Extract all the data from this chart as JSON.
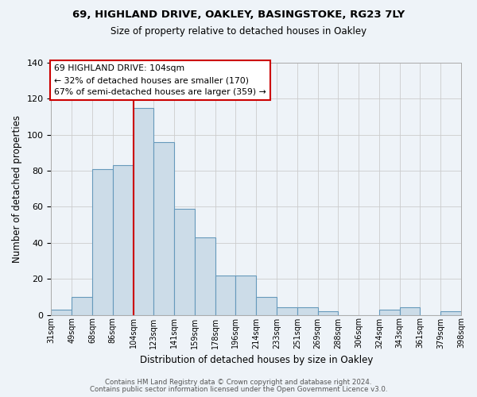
{
  "title": "69, HIGHLAND DRIVE, OAKLEY, BASINGSTOKE, RG23 7LY",
  "subtitle": "Size of property relative to detached houses in Oakley",
  "xlabel": "Distribution of detached houses by size in Oakley",
  "ylabel": "Number of detached properties",
  "bar_labels": [
    "31sqm",
    "49sqm",
    "68sqm",
    "86sqm",
    "104sqm",
    "123sqm",
    "141sqm",
    "159sqm",
    "178sqm",
    "196sqm",
    "214sqm",
    "233sqm",
    "251sqm",
    "269sqm",
    "288sqm",
    "306sqm",
    "324sqm",
    "343sqm",
    "361sqm",
    "379sqm",
    "398sqm"
  ],
  "bar_values": [
    3,
    10,
    81,
    83,
    115,
    96,
    59,
    43,
    22,
    22,
    10,
    4,
    4,
    2,
    0,
    0,
    3,
    4,
    0,
    2
  ],
  "vline_label_index": 4,
  "annotation_line1": "69 HIGHLAND DRIVE: 104sqm",
  "annotation_line2": "← 32% of detached houses are smaller (170)",
  "annotation_line3": "67% of semi-detached houses are larger (359) →",
  "bar_color": "#ccdce8",
  "bar_edge_color": "#6699bb",
  "vline_color": "#cc0000",
  "annotation_box_edge": "#cc0000",
  "annotation_box_face": "#ffffff",
  "ylim": [
    0,
    140
  ],
  "yticks": [
    0,
    20,
    40,
    60,
    80,
    100,
    120,
    140
  ],
  "footer1": "Contains HM Land Registry data © Crown copyright and database right 2024.",
  "footer2": "Contains public sector information licensed under the Open Government Licence v3.0.",
  "bg_color": "#eef3f8",
  "grid_color": "#cccccc",
  "title_fontsize": 9.5,
  "subtitle_fontsize": 8.5
}
